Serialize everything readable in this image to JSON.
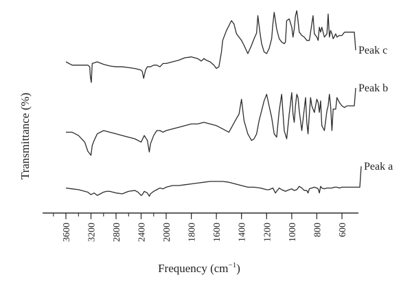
{
  "chart_data": {
    "type": "line",
    "title": "",
    "xlabel_main": "Frequency (cm",
    "xlabel_sup": "−1",
    "xlabel_end": ")",
    "ylabel": "Transmittance (%)",
    "x_reversed": true,
    "xlim": [
      4000,
      400
    ],
    "xticks": [
      3600,
      3200,
      2800,
      2400,
      2000,
      1800,
      1600,
      1400,
      1200,
      1000,
      800,
      600
    ],
    "grid": false,
    "legend": "labels at right end of each trace",
    "series": [
      {
        "name": "Peak c",
        "x": [
          3600,
          3500,
          3250,
          3220,
          3210,
          3195,
          3180,
          3100,
          3000,
          2900,
          2800,
          2700,
          2600,
          2500,
          2400,
          2380,
          2360,
          2330,
          2300,
          2250,
          2200,
          2150,
          2100,
          2050,
          2000,
          1950,
          1900,
          1850,
          1800,
          1750,
          1720,
          1700,
          1680,
          1650,
          1620,
          1600,
          1580,
          1560,
          1550,
          1520,
          1480,
          1460,
          1440,
          1420,
          1400,
          1380,
          1350,
          1320,
          1300,
          1280,
          1270,
          1255,
          1240,
          1220,
          1200,
          1180,
          1160,
          1150,
          1140,
          1120,
          1100,
          1080,
          1060,
          1050,
          1040,
          1020,
          1000,
          990,
          980,
          970,
          960,
          950,
          940,
          930,
          920,
          900,
          880,
          860,
          850,
          840,
          830,
          820,
          800,
          790,
          780,
          770,
          760,
          740,
          720,
          710,
          700,
          690,
          680,
          670,
          650,
          640,
          620,
          600,
          580
        ],
        "y": [
          50,
          46,
          46,
          44,
          32,
          25,
          48,
          50,
          47,
          45,
          44,
          44,
          43,
          42,
          40,
          38,
          30,
          40,
          44,
          44,
          46,
          46,
          44,
          48,
          48,
          50,
          52,
          55,
          56,
          54,
          51,
          54,
          52,
          50,
          46,
          42,
          44,
          62,
          76,
          88,
          100,
          96,
          84,
          80,
          76,
          70,
          60,
          70,
          78,
          85,
          106,
          88,
          72,
          62,
          60,
          66,
          78,
          96,
          110,
          90,
          78,
          74,
          72,
          74,
          100,
          102,
          92,
          80,
          90,
          106,
          112,
          100,
          86,
          84,
          82,
          80,
          76,
          76,
          86,
          96,
          106,
          84,
          80,
          76,
          92,
          86,
          92,
          80,
          84,
          108,
          80,
          88,
          84,
          78,
          84,
          80,
          82,
          82,
          86
        ]
      },
      {
        "name": "Peak b",
        "x": [
          3600,
          3500,
          3400,
          3300,
          3250,
          3200,
          3180,
          3150,
          3100,
          3000,
          2900,
          2800,
          2700,
          2600,
          2500,
          2400,
          2350,
          2300,
          2270,
          2250,
          2200,
          2150,
          2100,
          2050,
          2000,
          1950,
          1900,
          1850,
          1800,
          1750,
          1700,
          1650,
          1600,
          1550,
          1500,
          1450,
          1420,
          1400,
          1380,
          1350,
          1320,
          1300,
          1280,
          1260,
          1240,
          1220,
          1200,
          1180,
          1160,
          1140,
          1120,
          1100,
          1080,
          1060,
          1040,
          1020,
          1000,
          990,
          980,
          970,
          960,
          950,
          940,
          920,
          900,
          890,
          880,
          870,
          860,
          850,
          840,
          820,
          800,
          790,
          780,
          770,
          760,
          740,
          720,
          710,
          700,
          690,
          680,
          670,
          650,
          640,
          620,
          600,
          580,
          560
        ],
        "y": [
          38,
          38,
          34,
          26,
          15,
          10,
          22,
          28,
          36,
          40,
          38,
          36,
          34,
          32,
          30,
          26,
          34,
          28,
          14,
          24,
          34,
          40,
          40,
          38,
          40,
          42,
          44,
          46,
          48,
          48,
          50,
          48,
          46,
          42,
          38,
          52,
          60,
          78,
          52,
          36,
          28,
          30,
          36,
          52,
          64,
          76,
          84,
          70,
          56,
          36,
          32,
          64,
          84,
          40,
          30,
          60,
          86,
          60,
          50,
          70,
          84,
          80,
          64,
          40,
          66,
          80,
          50,
          36,
          60,
          80,
          70,
          62,
          78,
          74,
          62,
          76,
          46,
          40,
          64,
          70,
          84,
          70,
          40,
          66,
          66,
          80,
          74,
          70,
          68,
          70
        ]
      },
      {
        "name": "Peak a",
        "x": [
          3600,
          3500,
          3400,
          3300,
          3250,
          3200,
          3150,
          3100,
          3050,
          3000,
          2950,
          2900,
          2850,
          2800,
          2700,
          2600,
          2500,
          2450,
          2400,
          2380,
          2350,
          2300,
          2270,
          2250,
          2200,
          2150,
          2100,
          2050,
          2000,
          1950,
          1900,
          1850,
          1800,
          1750,
          1700,
          1650,
          1600,
          1550,
          1500,
          1450,
          1400,
          1350,
          1300,
          1250,
          1200,
          1180,
          1150,
          1130,
          1120,
          1100,
          1080,
          1050,
          1020,
          1000,
          980,
          960,
          940,
          920,
          900,
          880,
          870,
          860,
          840,
          820,
          800,
          790,
          780,
          770,
          760,
          740,
          720,
          700,
          680,
          660,
          640,
          620,
          600,
          580,
          560,
          540
        ],
        "y": [
          12,
          11,
          10,
          8,
          7,
          4,
          6,
          3,
          5,
          7,
          8,
          8,
          7,
          6,
          5,
          8,
          9,
          7,
          3,
          4,
          8,
          6,
          2,
          5,
          8,
          10,
          12,
          11,
          13,
          15,
          15,
          16,
          17,
          18,
          19,
          20,
          20,
          20,
          19,
          17,
          15,
          13,
          13,
          12,
          10,
          10,
          12,
          6,
          8,
          12,
          10,
          8,
          10,
          11,
          9,
          10,
          14,
          12,
          9,
          9,
          6,
          11,
          12,
          13,
          12,
          11,
          6,
          14,
          12,
          11,
          12,
          12,
          12,
          13,
          13,
          12,
          13,
          13,
          13,
          13
        ]
      }
    ]
  }
}
